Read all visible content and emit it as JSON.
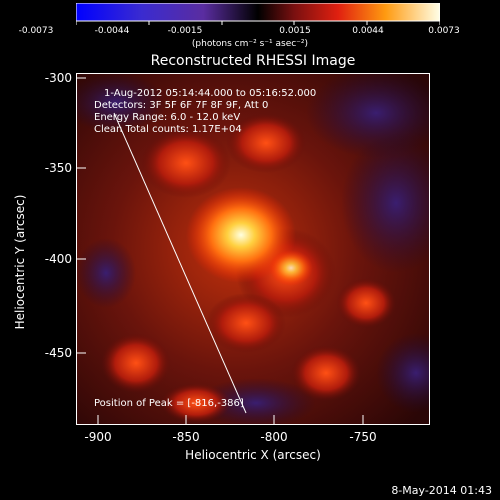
{
  "colorbar": {
    "ticks": [
      "-0.0073",
      "-0.0044",
      "-0.0015",
      "0.0015",
      "0.0044",
      "0.0073"
    ],
    "units": "(photons cm⁻² s⁻¹ asec⁻²)"
  },
  "title": "Reconstructed RHESSI Image",
  "overlay": {
    "time": "1-Aug-2012 05:14:44.000 to 05:16:52.000",
    "detectors": "Detectors: 3F 5F 6F 7F 8F 9F, Att 0",
    "energy": "Energy Range: 6.0 - 12.0 keV",
    "clean": "Clean    Total counts: 1.17E+04",
    "peak": "Position of Peak = [-816,-386]"
  },
  "axes": {
    "xlabel": "Heliocentric X (arcsec)",
    "ylabel": "Heliocentric Y (arcsec)",
    "xticks": [
      "-900",
      "-850",
      "-800",
      "-750"
    ],
    "yticks": [
      "-300",
      "-350",
      "-400",
      "-450"
    ]
  },
  "footer": "8-May-2014 01:43"
}
